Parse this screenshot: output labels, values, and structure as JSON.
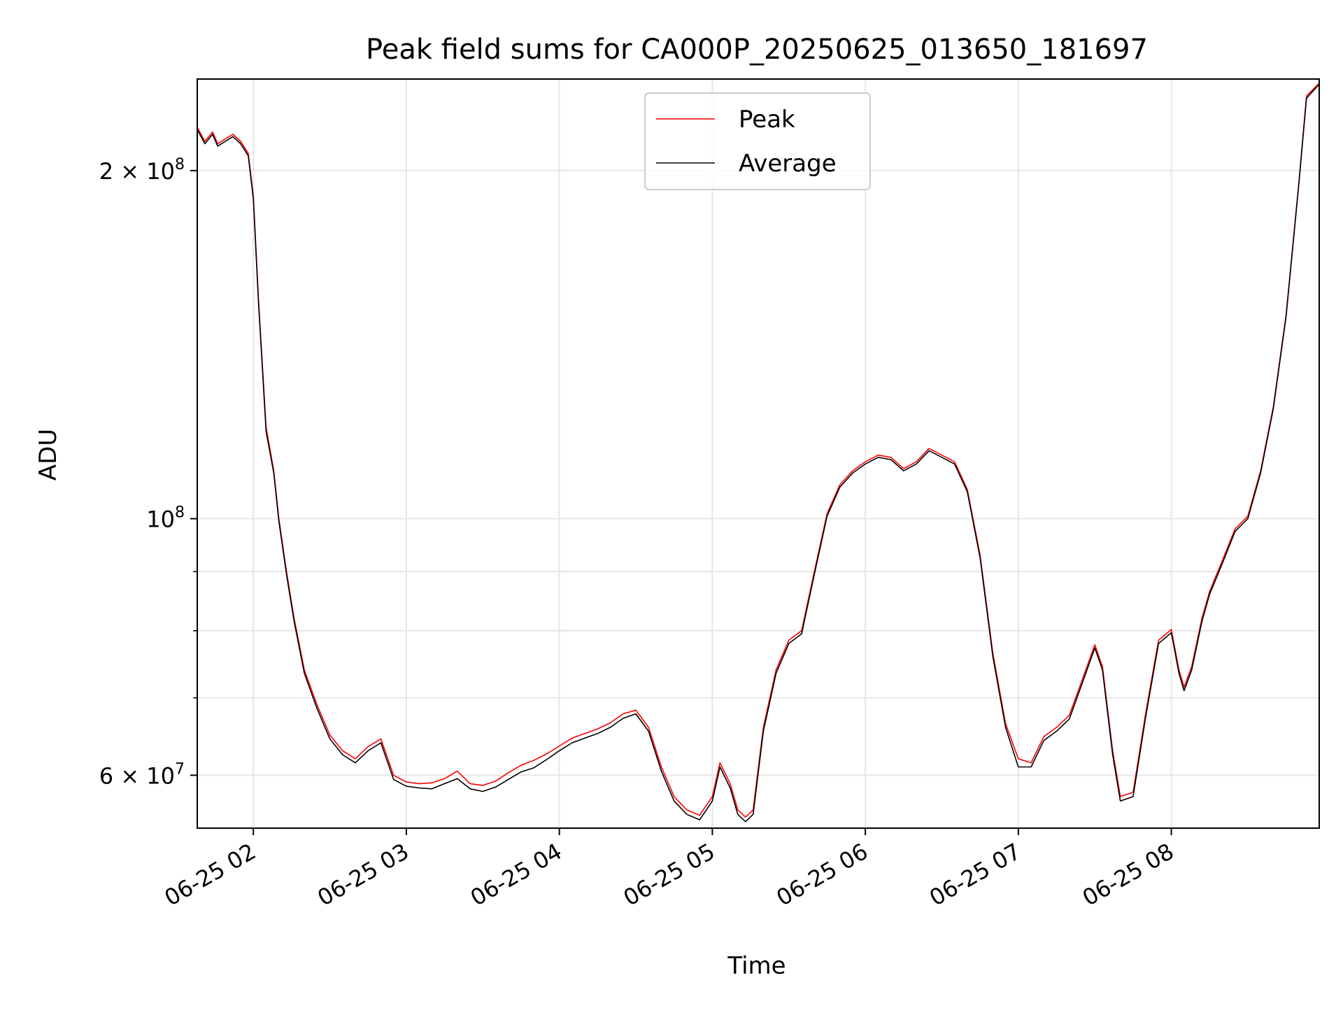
{
  "chart_data": {
    "type": "line",
    "title": "Peak field sums for CA000P_20250625_013650_181697",
    "xlabel": "Time",
    "ylabel": "ADU",
    "yscale": "log",
    "grid": true,
    "legend_position": "top-center",
    "x_range": [
      "06-25 01:38",
      "06-25 08:58"
    ],
    "y_range": [
      54000000,
      240000000
    ],
    "x_ticks": [
      "06-25 02",
      "06-25 03",
      "06-25 04",
      "06-25 05",
      "06-25 06",
      "06-25 07",
      "06-25 08"
    ],
    "y_ticks_major": [
      {
        "value": 60000000,
        "mantissa": "6",
        "exponent": "7"
      },
      {
        "value": 100000000,
        "mantissa": "",
        "exponent": "8"
      },
      {
        "value": 200000000,
        "mantissa": "2",
        "exponent": "8"
      }
    ],
    "y_ticks_minor": [
      70000000,
      80000000,
      90000000
    ],
    "colors": {
      "peak": "#ff0000",
      "average": "#000000",
      "grid": "#e6e6e6"
    },
    "series": [
      {
        "name": "Peak",
        "color": "#ff0000",
        "points": [
          [
            "06-25 01:38",
            218000000
          ],
          [
            "06-25 01:41",
            212000000
          ],
          [
            "06-25 01:44",
            216000000
          ],
          [
            "06-25 01:46",
            211000000
          ],
          [
            "06-25 01:49",
            213000000
          ],
          [
            "06-25 01:52",
            215000000
          ],
          [
            "06-25 01:55",
            212000000
          ],
          [
            "06-25 01:58",
            207000000
          ],
          [
            "06-25 02:00",
            190000000
          ],
          [
            "06-25 02:02",
            155000000
          ],
          [
            "06-25 02:05",
            120000000
          ],
          [
            "06-25 02:08",
            110000000
          ],
          [
            "06-25 02:10",
            100000000
          ],
          [
            "06-25 02:13",
            90000000
          ],
          [
            "06-25 02:16",
            82000000
          ],
          [
            "06-25 02:20",
            74000000
          ],
          [
            "06-25 02:25",
            69000000
          ],
          [
            "06-25 02:30",
            65000000
          ],
          [
            "06-25 02:35",
            63000000
          ],
          [
            "06-25 02:40",
            62000000
          ],
          [
            "06-25 02:45",
            63500000
          ],
          [
            "06-25 02:50",
            64500000
          ],
          [
            "06-25 02:55",
            60000000
          ],
          [
            "06-25 03:00",
            59200000
          ],
          [
            "06-25 03:05",
            59000000
          ],
          [
            "06-25 03:10",
            59100000
          ],
          [
            "06-25 03:15",
            59600000
          ],
          [
            "06-25 03:20",
            60500000
          ],
          [
            "06-25 03:25",
            59000000
          ],
          [
            "06-25 03:30",
            58800000
          ],
          [
            "06-25 03:35",
            59300000
          ],
          [
            "06-25 03:40",
            60300000
          ],
          [
            "06-25 03:45",
            61200000
          ],
          [
            "06-25 03:50",
            61800000
          ],
          [
            "06-25 03:55",
            62600000
          ],
          [
            "06-25 04:00",
            63600000
          ],
          [
            "06-25 04:05",
            64600000
          ],
          [
            "06-25 04:10",
            65200000
          ],
          [
            "06-25 04:15",
            65800000
          ],
          [
            "06-25 04:20",
            66600000
          ],
          [
            "06-25 04:25",
            67800000
          ],
          [
            "06-25 04:30",
            68300000
          ],
          [
            "06-25 04:35",
            66000000
          ],
          [
            "06-25 04:40",
            61000000
          ],
          [
            "06-25 04:45",
            57500000
          ],
          [
            "06-25 04:50",
            56000000
          ],
          [
            "06-25 04:55",
            55400000
          ],
          [
            "06-25 05:00",
            57500000
          ],
          [
            "06-25 05:03",
            61500000
          ],
          [
            "06-25 05:07",
            59000000
          ],
          [
            "06-25 05:10",
            56000000
          ],
          [
            "06-25 05:13",
            55200000
          ],
          [
            "06-25 05:16",
            56000000
          ],
          [
            "06-25 05:20",
            66000000
          ],
          [
            "06-25 05:25",
            74000000
          ],
          [
            "06-25 05:30",
            78500000
          ],
          [
            "06-25 05:35",
            80000000
          ],
          [
            "06-25 05:40",
            90000000
          ],
          [
            "06-25 05:45",
            101000000
          ],
          [
            "06-25 05:50",
            107000000
          ],
          [
            "06-25 05:55",
            110000000
          ],
          [
            "06-25 06:00",
            112000000
          ],
          [
            "06-25 06:05",
            113500000
          ],
          [
            "06-25 06:10",
            113000000
          ],
          [
            "06-25 06:15",
            110500000
          ],
          [
            "06-25 06:20",
            112000000
          ],
          [
            "06-25 06:25",
            115000000
          ],
          [
            "06-25 06:30",
            113500000
          ],
          [
            "06-25 06:35",
            112000000
          ],
          [
            "06-25 06:40",
            106000000
          ],
          [
            "06-25 06:45",
            93000000
          ],
          [
            "06-25 06:50",
            76500000
          ],
          [
            "06-25 06:55",
            66500000
          ],
          [
            "06-25 07:00",
            62000000
          ],
          [
            "06-25 07:05",
            61500000
          ],
          [
            "06-25 07:10",
            64800000
          ],
          [
            "06-25 07:15",
            66000000
          ],
          [
            "06-25 07:20",
            67600000
          ],
          [
            "06-25 07:25",
            72500000
          ],
          [
            "06-25 07:30",
            77800000
          ],
          [
            "06-25 07:33",
            74500000
          ],
          [
            "06-25 07:37",
            63000000
          ],
          [
            "06-25 07:40",
            57500000
          ],
          [
            "06-25 07:45",
            58000000
          ],
          [
            "06-25 07:50",
            68000000
          ],
          [
            "06-25 07:55",
            78500000
          ],
          [
            "06-25 08:00",
            80200000
          ],
          [
            "06-25 08:03",
            74000000
          ],
          [
            "06-25 08:05",
            71500000
          ],
          [
            "06-25 08:08",
            74500000
          ],
          [
            "06-25 08:12",
            82000000
          ],
          [
            "06-25 08:15",
            86500000
          ],
          [
            "06-25 08:20",
            92000000
          ],
          [
            "06-25 08:25",
            98000000
          ],
          [
            "06-25 08:30",
            100500000
          ],
          [
            "06-25 08:35",
            110000000
          ],
          [
            "06-25 08:40",
            125000000
          ],
          [
            "06-25 08:45",
            150000000
          ],
          [
            "06-25 08:50",
            195000000
          ],
          [
            "06-25 08:53",
            232000000
          ],
          [
            "06-25 08:58",
            238000000
          ]
        ]
      },
      {
        "name": "Average",
        "color": "#000000",
        "points": [
          [
            "06-25 01:38",
            217000000
          ],
          [
            "06-25 01:41",
            211000000
          ],
          [
            "06-25 01:44",
            215000000
          ],
          [
            "06-25 01:46",
            210000000
          ],
          [
            "06-25 01:49",
            212000000
          ],
          [
            "06-25 01:52",
            214000000
          ],
          [
            "06-25 01:55",
            211000000
          ],
          [
            "06-25 01:58",
            206000000
          ],
          [
            "06-25 02:00",
            189000000
          ],
          [
            "06-25 02:02",
            154000000
          ],
          [
            "06-25 02:05",
            119000000
          ],
          [
            "06-25 02:08",
            109500000
          ],
          [
            "06-25 02:10",
            99500000
          ],
          [
            "06-25 02:13",
            89500000
          ],
          [
            "06-25 02:16",
            81500000
          ],
          [
            "06-25 02:20",
            73500000
          ],
          [
            "06-25 02:25",
            68500000
          ],
          [
            "06-25 02:30",
            64500000
          ],
          [
            "06-25 02:35",
            62500000
          ],
          [
            "06-25 02:40",
            61500000
          ],
          [
            "06-25 02:45",
            63000000
          ],
          [
            "06-25 02:50",
            64000000
          ],
          [
            "06-25 02:55",
            59500000
          ],
          [
            "06-25 03:00",
            58700000
          ],
          [
            "06-25 03:05",
            58500000
          ],
          [
            "06-25 03:10",
            58400000
          ],
          [
            "06-25 03:15",
            59000000
          ],
          [
            "06-25 03:20",
            59600000
          ],
          [
            "06-25 03:25",
            58400000
          ],
          [
            "06-25 03:30",
            58100000
          ],
          [
            "06-25 03:35",
            58600000
          ],
          [
            "06-25 03:40",
            59500000
          ],
          [
            "06-25 03:45",
            60400000
          ],
          [
            "06-25 03:50",
            60900000
          ],
          [
            "06-25 03:55",
            61900000
          ],
          [
            "06-25 04:00",
            63000000
          ],
          [
            "06-25 04:05",
            64000000
          ],
          [
            "06-25 04:10",
            64600000
          ],
          [
            "06-25 04:15",
            65200000
          ],
          [
            "06-25 04:20",
            66000000
          ],
          [
            "06-25 04:25",
            67200000
          ],
          [
            "06-25 04:30",
            67800000
          ],
          [
            "06-25 04:35",
            65500000
          ],
          [
            "06-25 04:40",
            60500000
          ],
          [
            "06-25 04:45",
            57000000
          ],
          [
            "06-25 04:50",
            55500000
          ],
          [
            "06-25 04:55",
            54900000
          ],
          [
            "06-25 05:00",
            57000000
          ],
          [
            "06-25 05:03",
            61000000
          ],
          [
            "06-25 05:07",
            58500000
          ],
          [
            "06-25 05:10",
            55500000
          ],
          [
            "06-25 05:13",
            54700000
          ],
          [
            "06-25 05:16",
            55500000
          ],
          [
            "06-25 05:20",
            65500000
          ],
          [
            "06-25 05:25",
            73500000
          ],
          [
            "06-25 05:30",
            78000000
          ],
          [
            "06-25 05:35",
            79500000
          ],
          [
            "06-25 05:40",
            89500000
          ],
          [
            "06-25 05:45",
            100500000
          ],
          [
            "06-25 05:50",
            106500000
          ],
          [
            "06-25 05:55",
            109500000
          ],
          [
            "06-25 06:00",
            111500000
          ],
          [
            "06-25 06:05",
            113000000
          ],
          [
            "06-25 06:10",
            112500000
          ],
          [
            "06-25 06:15",
            110000000
          ],
          [
            "06-25 06:20",
            111500000
          ],
          [
            "06-25 06:25",
            114500000
          ],
          [
            "06-25 06:30",
            113000000
          ],
          [
            "06-25 06:35",
            111500000
          ],
          [
            "06-25 06:40",
            105500000
          ],
          [
            "06-25 06:45",
            92500000
          ],
          [
            "06-25 06:50",
            76000000
          ],
          [
            "06-25 06:55",
            66000000
          ],
          [
            "06-25 07:00",
            61000000
          ],
          [
            "06-25 07:05",
            61000000
          ],
          [
            "06-25 07:10",
            64300000
          ],
          [
            "06-25 07:15",
            65500000
          ],
          [
            "06-25 07:20",
            67100000
          ],
          [
            "06-25 07:25",
            72000000
          ],
          [
            "06-25 07:30",
            77300000
          ],
          [
            "06-25 07:33",
            74000000
          ],
          [
            "06-25 07:37",
            62500000
          ],
          [
            "06-25 07:40",
            57000000
          ],
          [
            "06-25 07:45",
            57500000
          ],
          [
            "06-25 07:50",
            67500000
          ],
          [
            "06-25 07:55",
            78000000
          ],
          [
            "06-25 08:00",
            79700000
          ],
          [
            "06-25 08:03",
            73500000
          ],
          [
            "06-25 08:05",
            71000000
          ],
          [
            "06-25 08:08",
            74000000
          ],
          [
            "06-25 08:12",
            81500000
          ],
          [
            "06-25 08:15",
            86000000
          ],
          [
            "06-25 08:20",
            91500000
          ],
          [
            "06-25 08:25",
            97500000
          ],
          [
            "06-25 08:30",
            100000000
          ],
          [
            "06-25 08:35",
            109500000
          ],
          [
            "06-25 08:40",
            124500000
          ],
          [
            "06-25 08:45",
            149500000
          ],
          [
            "06-25 08:50",
            194500000
          ],
          [
            "06-25 08:53",
            231000000
          ],
          [
            "06-25 08:58",
            237500000
          ]
        ]
      }
    ]
  }
}
